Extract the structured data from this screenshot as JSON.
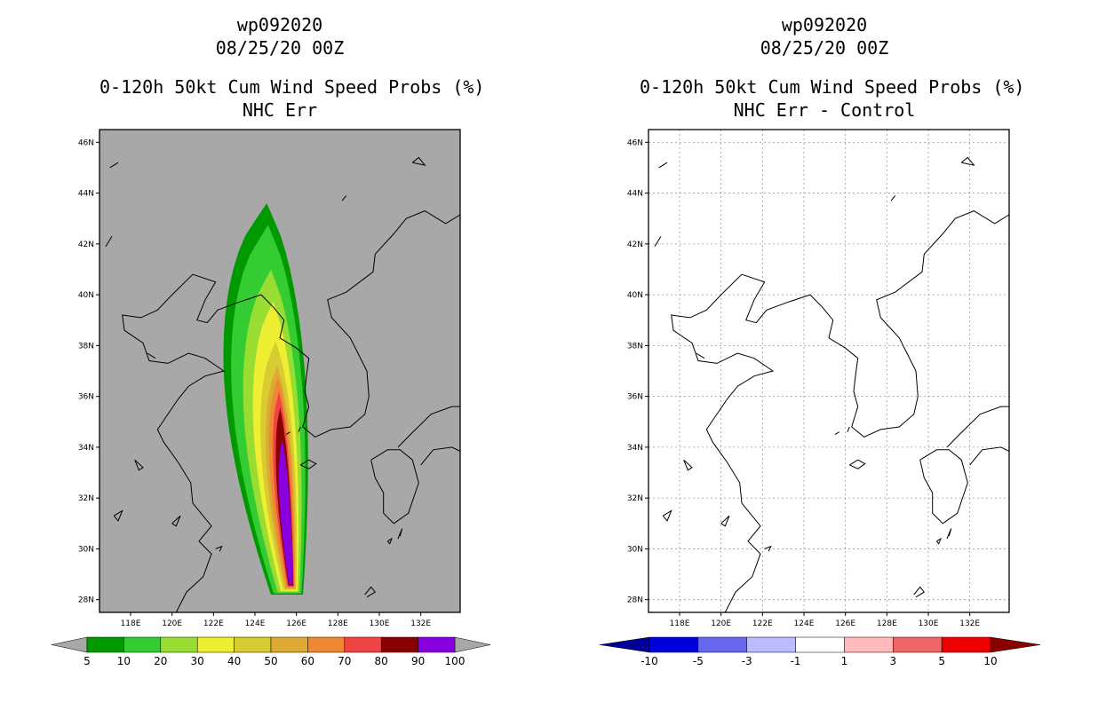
{
  "left_panel": {
    "title_lines": [
      "wp092020",
      "08/25/20 00Z",
      "0-120h 50kt Cum Wind Speed Probs (%)",
      "NHC Err"
    ],
    "background_color": "#a8a8a8",
    "lat_labels": [
      "28N",
      "30N",
      "32N",
      "34N",
      "36N",
      "38N",
      "40N",
      "42N",
      "44N",
      "46N"
    ],
    "lon_labels": [
      "118E",
      "120E",
      "122E",
      "124E",
      "126E",
      "128E",
      "130E",
      "132E"
    ],
    "colorbar": {
      "ticks": [
        "5",
        "10",
        "20",
        "30",
        "40",
        "50",
        "60",
        "70",
        "80",
        "90",
        "100"
      ],
      "colors": [
        "#009900",
        "#33cc33",
        "#99dd33",
        "#eeee33",
        "#d9cc33",
        "#ddaa33",
        "#ee8833",
        "#ee4444",
        "#880000",
        "#8800dd"
      ],
      "end_color": "#a8a8a8"
    },
    "prob_contours": [
      {
        "level": "5",
        "color": "#009900"
      },
      {
        "level": "10",
        "color": "#33cc33"
      },
      {
        "level": "20",
        "color": "#99dd33"
      },
      {
        "level": "30",
        "color": "#eeee33"
      },
      {
        "level": "40",
        "color": "#d9cc33"
      },
      {
        "level": "50",
        "color": "#ddaa33"
      },
      {
        "level": "60",
        "color": "#ee8833"
      },
      {
        "level": "70",
        "color": "#ee4444"
      },
      {
        "level": "80",
        "color": "#880000"
      },
      {
        "level": "90",
        "color": "#8800dd"
      }
    ]
  },
  "right_panel": {
    "title_lines": [
      "wp092020",
      "08/25/20 00Z",
      "0-120h 50kt Cum Wind Speed Probs (%)",
      "NHC Err - Control"
    ],
    "background_color": "#ffffff",
    "lat_labels": [
      "28N",
      "30N",
      "32N",
      "34N",
      "36N",
      "38N",
      "40N",
      "42N",
      "44N",
      "46N"
    ],
    "lon_labels": [
      "118E",
      "120E",
      "122E",
      "124E",
      "126E",
      "128E",
      "130E",
      "132E"
    ],
    "colorbar": {
      "ticks": [
        "-10",
        "-5",
        "-3",
        "-1",
        "1",
        "3",
        "5",
        "10"
      ],
      "colors": [
        "#0000dd",
        "#6666ee",
        "#bbbbff",
        "#ffffff",
        "#ffbbbb",
        "#ee6666",
        "#ee0000"
      ],
      "left_end_color": "#000099",
      "right_end_color": "#880000"
    }
  }
}
